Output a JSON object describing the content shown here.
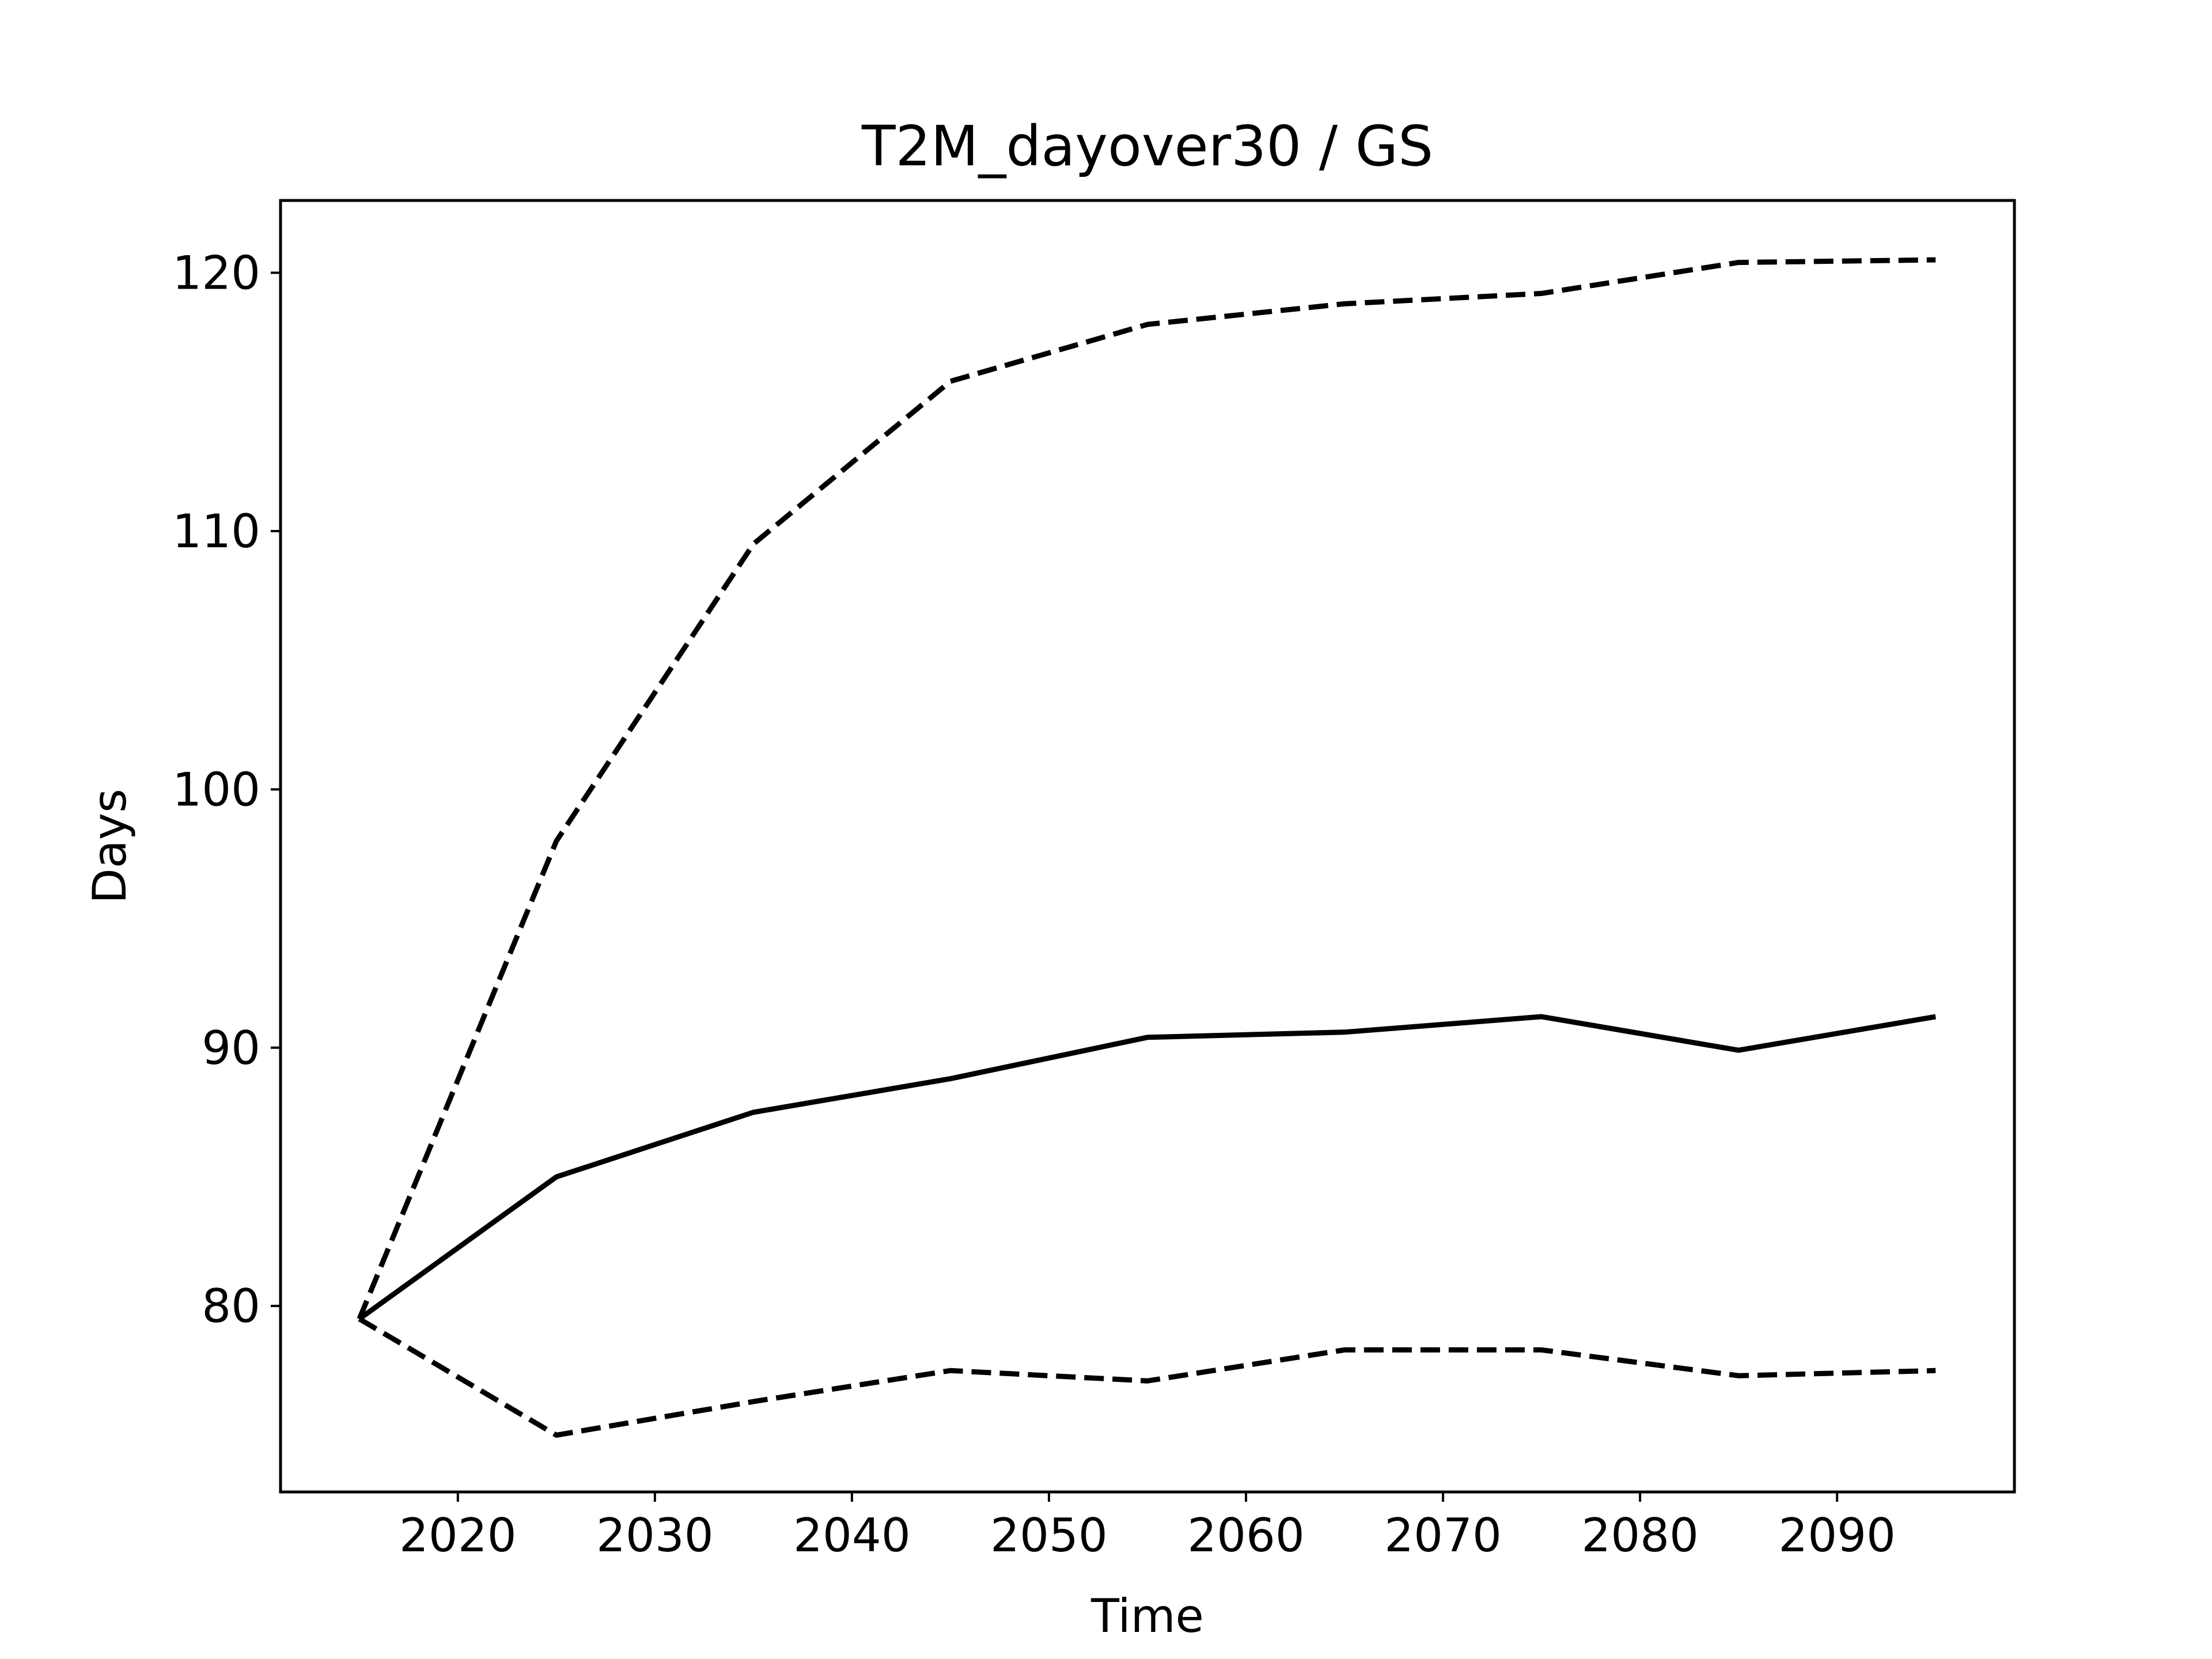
{
  "chart_data": {
    "type": "line",
    "title": "T2M_dayover30 / GS",
    "xlabel": "Time",
    "ylabel": "Days",
    "xlim": [
      2011,
      2099
    ],
    "ylim": [
      72.8,
      122.8
    ],
    "xticks": [
      2020,
      2030,
      2040,
      2050,
      2060,
      2070,
      2080,
      2090
    ],
    "yticks": [
      80,
      90,
      100,
      110,
      120
    ],
    "grid": false,
    "x": [
      2015,
      2025,
      2035,
      2045,
      2055,
      2065,
      2075,
      2085,
      2095
    ],
    "series": [
      {
        "style": "dashed",
        "color": "#000000",
        "values": [
          79.5,
          98.0,
          109.5,
          115.8,
          118.0,
          118.8,
          119.2,
          120.4,
          120.5
        ]
      },
      {
        "style": "solid",
        "color": "#000000",
        "values": [
          79.5,
          85.0,
          87.5,
          88.8,
          90.4,
          90.6,
          91.2,
          89.9,
          91.2
        ]
      },
      {
        "style": "dashed",
        "color": "#000000",
        "values": [
          79.5,
          75.0,
          76.3,
          77.5,
          77.1,
          78.3,
          78.3,
          77.3,
          77.5
        ]
      }
    ]
  }
}
